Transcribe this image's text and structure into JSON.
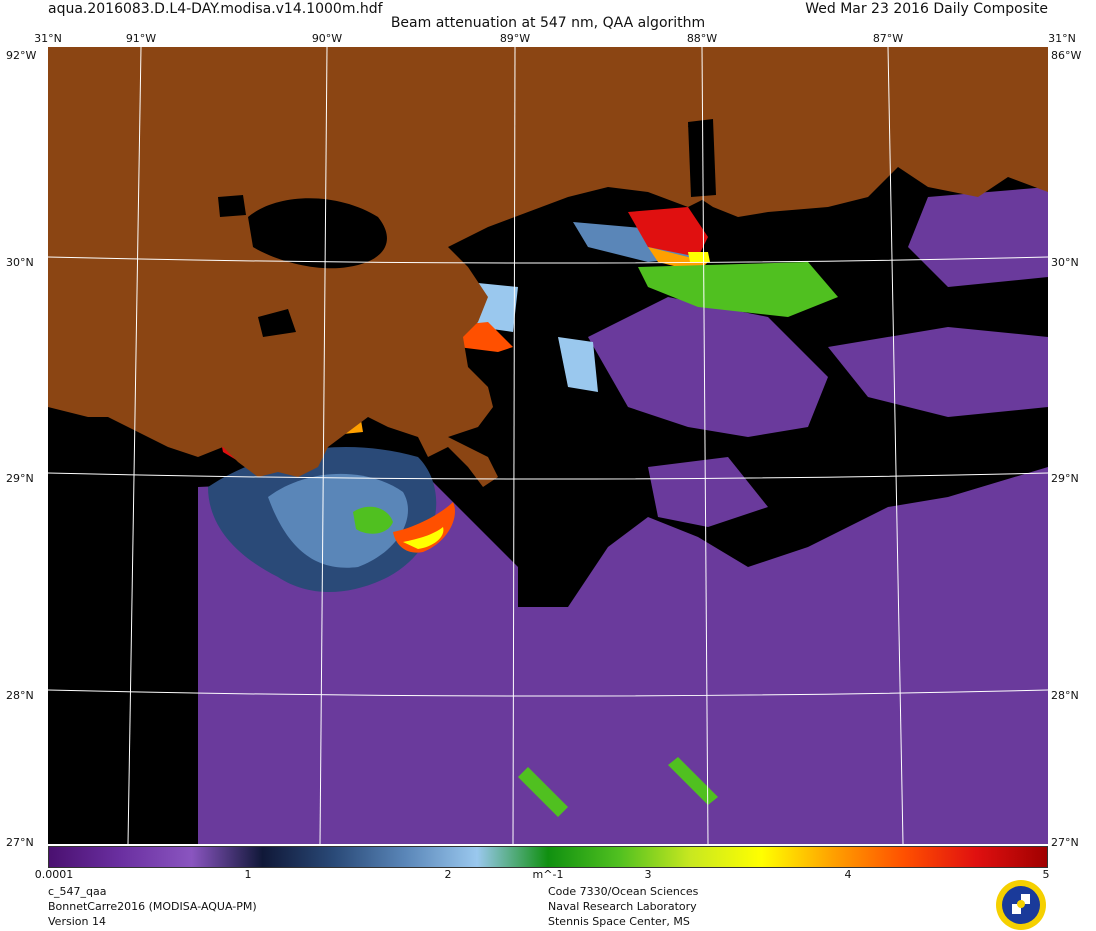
{
  "header": {
    "filename": "aqua.2016083.D.L4-DAY.modisa.v14.1000m.hdf",
    "date": "Wed Mar 23 2016 Daily Composite",
    "title": "Beam attenuation at 547 nm, QAA algorithm"
  },
  "grid": {
    "lon_labels": [
      "91°W",
      "90°W",
      "89°W",
      "88°W",
      "87°W"
    ],
    "lat_labels": [
      "30°N",
      "29°N",
      "28°N"
    ],
    "corner_top": "31°N",
    "corner_left_lon": "92°W",
    "corner_right_lon": "86°W",
    "bottom_left_lat": "27°N",
    "bottom_right_lat": "27°N"
  },
  "colorbar": {
    "ticks": [
      "0.0001",
      "1",
      "2",
      "3",
      "4",
      "5"
    ],
    "unit": "m^-1",
    "colors": [
      "#4a1070",
      "#6a2fa0",
      "#8a55c0",
      "#101838",
      "#2a4a78",
      "#5a86b8",
      "#9ac8ee",
      "#109010",
      "#50c020",
      "#c8e820",
      "#ffff00",
      "#ffa000",
      "#ff5000",
      "#e01010",
      "#a00000"
    ]
  },
  "footer": {
    "product": "c_547_qaa",
    "dataset": "BonnetCarre2016 (MODISA-AQUA-PM)",
    "version": "Version 14",
    "org1": "Code 7330/Ocean Sciences",
    "org2": "Naval Research Laboratory",
    "org3": "Stennis Space Center, MS"
  },
  "map_colors": {
    "land": "#8b4513",
    "no_data": "#000000",
    "water_low": "#6a3a9c",
    "plume_mid": "#2a4a78",
    "grid_line": "#ffffff"
  }
}
